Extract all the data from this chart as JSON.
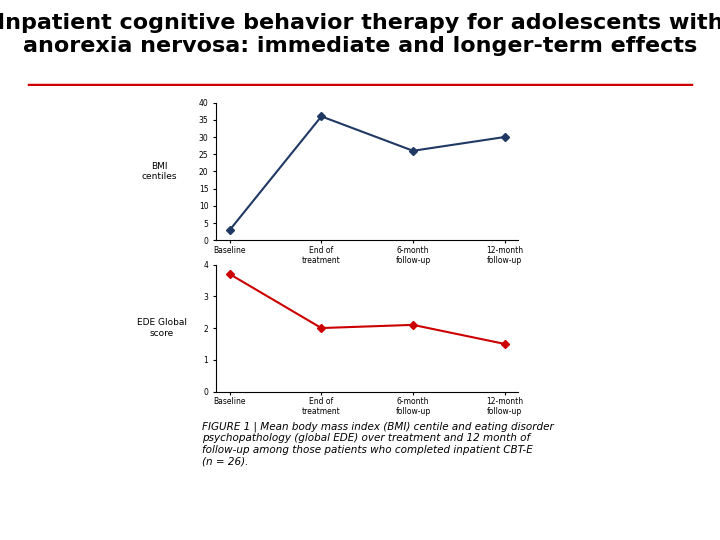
{
  "title_line1": "Inpatient cognitive behavior therapy for adolescents with",
  "title_line2": "anorexia nervosa: immediate and longer-term effects",
  "title_fontsize": 16,
  "title_color": "#000000",
  "divider_color": "#cc0000",
  "bmi_xlabel_categories": [
    "Baseline",
    "End of\ntreatment",
    "6-month\nfollow-up",
    "12-month\nfollow-up"
  ],
  "bmi_values": [
    3,
    36,
    26,
    30
  ],
  "bmi_ylabel": "BMI\ncentiles",
  "bmi_ylim": [
    0,
    40
  ],
  "bmi_yticks": [
    0,
    5,
    10,
    15,
    20,
    25,
    30,
    35,
    40
  ],
  "bmi_color": "#1f3864",
  "bmi_marker": "D",
  "bmi_markersize": 4,
  "bmi_linewidth": 1.5,
  "ede_xlabel_categories": [
    "Baseline",
    "End of\ntreatment",
    "6-month\nfollow-up",
    "12-month\nfollow-up"
  ],
  "ede_values": [
    3.7,
    2.0,
    2.1,
    1.5
  ],
  "ede_ylabel": "EDE Global\nscore",
  "ede_ylim": [
    0,
    4
  ],
  "ede_yticks": [
    0,
    1,
    2,
    3,
    4
  ],
  "ede_color": "#cc0000",
  "ede_marker": "D",
  "ede_markersize": 4,
  "ede_linewidth": 1.5,
  "caption": "FIGURE 1 | Mean body mass index (BMI) centile and eating disorder\npsychopathology (global EDE) over treatment and 12 month of\nfollow-up among those patients who completed inpatient CBT-E\n(n = 26).",
  "caption_fontsize": 7.5,
  "bg_color": "#ffffff"
}
